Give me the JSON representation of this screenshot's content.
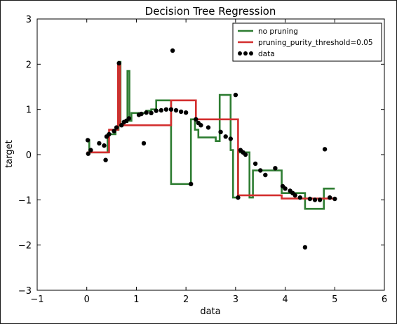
{
  "chart_data": {
    "type": "line",
    "title": "Decision Tree Regression",
    "xlabel": "data",
    "ylabel": "target",
    "xlim": [
      -1,
      6
    ],
    "ylim": [
      -3,
      3
    ],
    "xticks": [
      "−1",
      "0",
      "1",
      "2",
      "3",
      "4",
      "5",
      "6"
    ],
    "yticks": [
      "3",
      "2",
      "1",
      "0",
      "−1",
      "−2",
      "−3"
    ],
    "grid": false,
    "legend": {
      "placement": "top-right",
      "entries": [
        {
          "label": "no pruning",
          "color": "#2e7d32",
          "kind": "line"
        },
        {
          "label": "pruning_purity_threshold=0.05",
          "color": "#d32f2f",
          "kind": "line"
        },
        {
          "label": "data",
          "color": "#000000",
          "kind": "marker"
        }
      ]
    },
    "series": [
      {
        "name": "no pruning",
        "color": "#2e7d32",
        "x": [
          0.0,
          0.05,
          0.05,
          0.42,
          0.42,
          0.58,
          0.58,
          0.64,
          0.64,
          0.68,
          0.68,
          0.74,
          0.74,
          0.82,
          0.82,
          0.86,
          0.86,
          0.9,
          0.9,
          1.2,
          1.2,
          1.3,
          1.3,
          1.4,
          1.4,
          1.7,
          1.7,
          2.1,
          2.1,
          2.18,
          2.18,
          2.25,
          2.25,
          2.6,
          2.6,
          2.68,
          2.68,
          2.9,
          2.9,
          2.95,
          2.95,
          3.05,
          3.05,
          3.28,
          3.28,
          3.35,
          3.35,
          3.93,
          3.93,
          4.4,
          4.4,
          4.78,
          4.78,
          5.0
        ],
        "y": [
          0.32,
          0.32,
          0.05,
          0.05,
          0.45,
          0.45,
          0.55,
          0.55,
          2.05,
          2.05,
          0.65,
          0.65,
          0.72,
          0.72,
          1.85,
          1.85,
          0.75,
          0.75,
          0.92,
          0.92,
          0.97,
          0.97,
          1.0,
          1.0,
          1.2,
          1.2,
          -0.65,
          -0.65,
          0.78,
          0.78,
          0.55,
          0.55,
          0.38,
          0.38,
          0.3,
          0.3,
          1.32,
          1.32,
          0.1,
          0.1,
          -0.95,
          -0.95,
          0.05,
          0.05,
          -0.95,
          -0.95,
          -0.35,
          -0.35,
          -0.85,
          -0.85,
          -1.2,
          -1.2,
          -0.75,
          -0.75
        ]
      },
      {
        "name": "pruning_purity_threshold=0.05",
        "color": "#d32f2f",
        "x": [
          0.0,
          0.45,
          0.45,
          0.63,
          0.63,
          0.67,
          0.67,
          1.7,
          1.7,
          2.2,
          2.2,
          3.05,
          3.05,
          3.93,
          3.93,
          5.0
        ],
        "y": [
          0.05,
          0.05,
          0.55,
          0.55,
          2.03,
          2.03,
          0.65,
          0.65,
          1.2,
          1.2,
          0.78,
          0.78,
          -0.9,
          -0.9,
          -0.97,
          -0.97
        ]
      },
      {
        "name": "data",
        "color": "#000000",
        "x": [
          0.02,
          0.03,
          0.08,
          0.25,
          0.38,
          0.4,
          0.45,
          0.55,
          0.6,
          0.65,
          0.7,
          0.75,
          0.8,
          0.85,
          1.05,
          1.1,
          1.2,
          1.3,
          1.4,
          1.5,
          1.6,
          1.7,
          1.73,
          1.8,
          1.9,
          2.0,
          2.1,
          2.2,
          2.25,
          2.3,
          2.45,
          2.7,
          2.8,
          2.9,
          3.0,
          3.05,
          3.1,
          3.15,
          3.2,
          3.4,
          3.5,
          3.6,
          3.8,
          3.95,
          4.0,
          4.1,
          4.15,
          4.2,
          4.3,
          4.4,
          4.5,
          4.6,
          4.7,
          4.8,
          4.9,
          5.0,
          0.35,
          1.15
        ],
        "y": [
          0.32,
          0.02,
          0.1,
          0.25,
          -0.12,
          0.4,
          0.45,
          0.52,
          0.6,
          2.02,
          0.65,
          0.72,
          0.75,
          0.8,
          0.88,
          0.9,
          0.93,
          0.92,
          0.97,
          0.98,
          1.0,
          1.0,
          2.3,
          0.98,
          0.95,
          0.93,
          -0.65,
          0.78,
          0.7,
          0.65,
          0.6,
          0.5,
          0.4,
          0.35,
          1.32,
          -0.95,
          0.1,
          0.05,
          0.0,
          -0.2,
          -0.35,
          -0.45,
          -0.3,
          -0.7,
          -0.75,
          -0.8,
          -0.85,
          -0.9,
          -0.95,
          -2.05,
          -0.98,
          -1.0,
          -1.0,
          0.12,
          -0.95,
          -0.98,
          0.2,
          0.25
        ]
      }
    ]
  }
}
